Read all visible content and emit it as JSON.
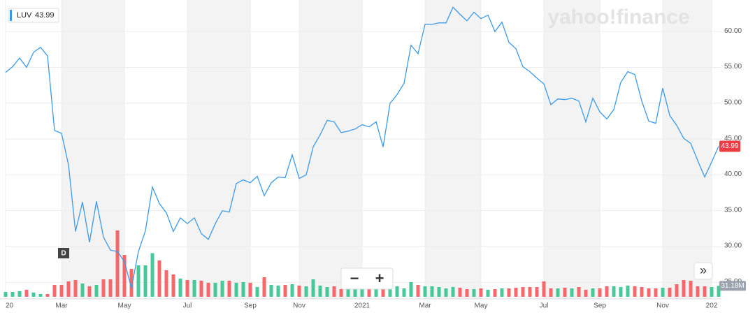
{
  "chart_data": {
    "type": "line",
    "watermark": "yahoo!finance",
    "categories": [
      "20",
      null,
      null,
      null,
      null,
      null,
      null,
      null,
      "Mar",
      null,
      null,
      null,
      null,
      null,
      null,
      null,
      null,
      "May",
      null,
      null,
      null,
      null,
      null,
      null,
      null,
      null,
      "Jul",
      null,
      null,
      null,
      null,
      null,
      null,
      null,
      null,
      "Sep",
      null,
      null,
      null,
      null,
      null,
      null,
      "Nov",
      null,
      null,
      null,
      null,
      null,
      null,
      null,
      null,
      "2021",
      null,
      null,
      null,
      null,
      null,
      null,
      null,
      null,
      "Mar",
      null,
      null,
      null,
      null,
      null,
      null,
      null,
      "May",
      null,
      null,
      null,
      null,
      null,
      null,
      null,
      null,
      "Jul",
      null,
      null,
      null,
      null,
      null,
      null,
      null,
      "Sep",
      null,
      null,
      null,
      null,
      null,
      null,
      null,
      null,
      "Nov",
      null,
      null,
      null,
      null,
      null,
      null,
      "202",
      null
    ],
    "series": [
      {
        "name": "LUV",
        "color": "#3b9ae8",
        "values": [
          54.3,
          55.1,
          56.3,
          55.0,
          57.1,
          57.8,
          56.6,
          46.2,
          45.8,
          41.4,
          32.1,
          36.2,
          30.6,
          36.3,
          31.3,
          29.5,
          29.3,
          27.9,
          24.2,
          29.3,
          32.2,
          38.3,
          36.0,
          34.7,
          32.1,
          34.0,
          33.2,
          34.0,
          31.8,
          31.0,
          33.2,
          35.0,
          34.8,
          38.8,
          39.3,
          38.9,
          39.8,
          37.1,
          38.9,
          39.7,
          39.6,
          42.8,
          39.5,
          40.0,
          43.9,
          45.6,
          47.6,
          47.4,
          45.9,
          46.1,
          46.4,
          47.0,
          46.7,
          47.4,
          43.9,
          50.0,
          51.2,
          52.8,
          58.1,
          56.9,
          61.0,
          61.0,
          61.2,
          61.2,
          63.4,
          62.4,
          61.5,
          62.7,
          61.8,
          62.3,
          60.0,
          61.3,
          58.5,
          57.6,
          55.1,
          54.4,
          53.5,
          52.7,
          49.8,
          50.6,
          50.5,
          50.7,
          50.3,
          47.4,
          50.7,
          48.8,
          47.8,
          49.1,
          52.9,
          54.4,
          54.0,
          50.3,
          47.5,
          47.2,
          52.1,
          48.3,
          46.9,
          45.1,
          44.4,
          42.0,
          39.7,
          41.8,
          43.99
        ]
      }
    ],
    "price_badge": {
      "value": 43.99,
      "label": "43.99"
    },
    "volume": {
      "up_color": "#34c38f",
      "down_color": "#f6585d",
      "values": [
        14,
        14,
        16,
        20,
        12,
        8,
        8,
        34,
        34,
        44,
        48,
        38,
        30,
        34,
        50,
        50,
        190,
        120,
        80,
        90,
        90,
        125,
        104,
        76,
        64,
        52,
        48,
        48,
        46,
        40,
        40,
        46,
        46,
        40,
        42,
        40,
        28,
        56,
        34,
        32,
        34,
        36,
        32,
        30,
        50,
        32,
        28,
        30,
        22,
        26,
        30,
        26,
        26,
        32,
        24,
        22,
        30,
        24,
        42,
        34,
        30,
        30,
        28,
        24,
        28,
        26,
        22,
        22,
        24,
        20,
        22,
        24,
        24,
        26,
        28,
        28,
        28,
        44,
        24,
        24,
        26,
        24,
        28,
        20,
        24,
        24,
        30,
        30,
        28,
        32,
        30,
        28,
        24,
        24,
        26,
        26,
        36,
        48,
        46,
        30,
        30,
        28,
        31.18
      ],
      "last_label": {
        "value": 31.18,
        "label": "31.18M"
      }
    },
    "ylim": [
      22.7,
      64.4
    ],
    "yticks": [
      {
        "value": 25,
        "label": "25.00"
      },
      {
        "value": 30,
        "label": "30.00"
      },
      {
        "value": 35,
        "label": "35.00"
      },
      {
        "value": 40,
        "label": "40.00"
      },
      {
        "value": 45,
        "label": "45.00"
      },
      {
        "value": 50,
        "label": "50.00"
      },
      {
        "value": 55,
        "label": "55.00"
      },
      {
        "value": 60,
        "label": "60.00"
      }
    ],
    "grid": true,
    "buttons": {
      "interval": "D",
      "zoom_out": "−",
      "zoom_in": "+",
      "scroll": "»"
    }
  }
}
